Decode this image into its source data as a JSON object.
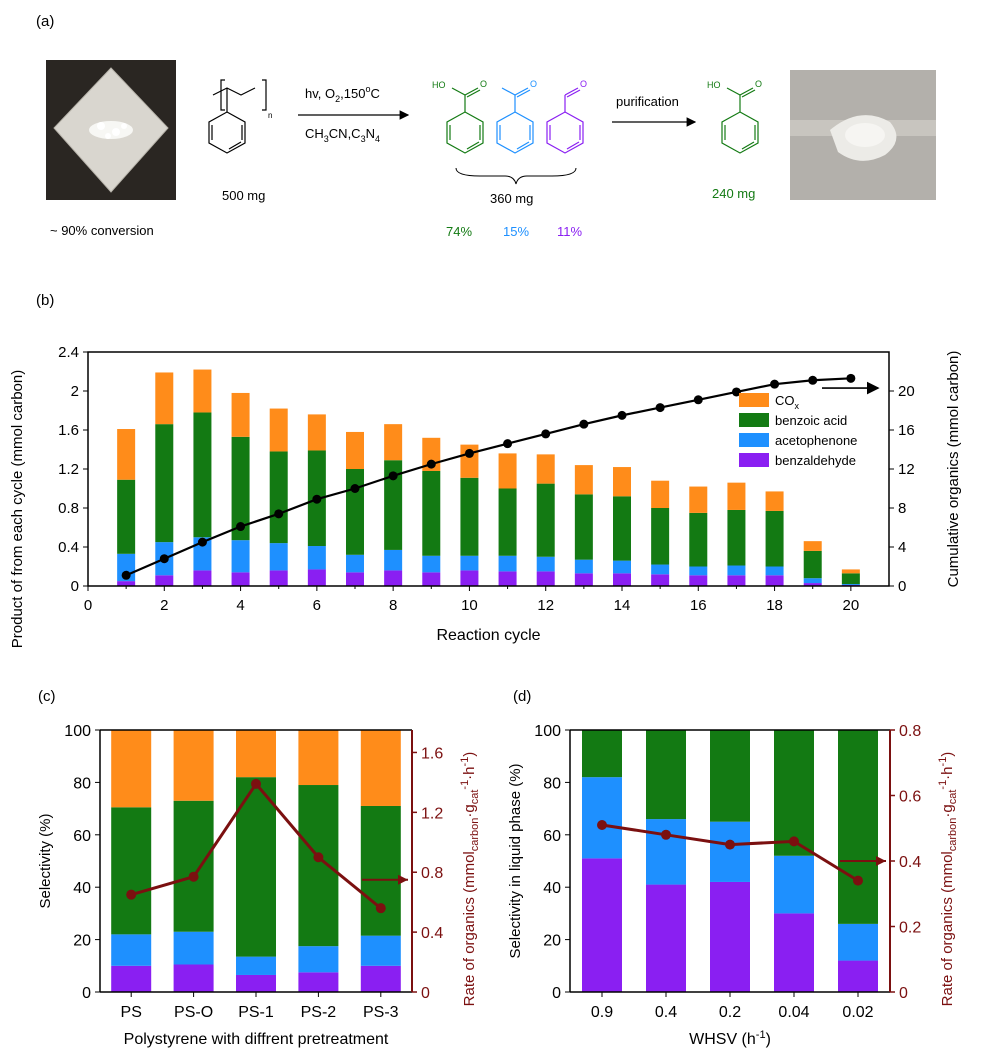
{
  "colors": {
    "cox": "#FF8C1A",
    "benzoic": "#137A13",
    "acetophenone": "#1E90FF",
    "benzaldehyde": "#8A1FF2",
    "rate": "#7B1010",
    "cumulative": "#000000"
  },
  "panel_a": {
    "label": "(a)",
    "conversion": "~ 90% conversion",
    "ps_mass": "500 mg",
    "sub_n": "n",
    "cond_top": "hv, O",
    "cond_top_sub": "2",
    "cond_top_rest": ",150",
    "cond_top_sup": "o",
    "cond_top_unit": "C",
    "cond_bot_1": "CH",
    "cond_bot_sub1": "3",
    "cond_bot_2": "CN,C",
    "cond_bot_sub2": "3",
    "cond_bot_3": "N",
    "cond_bot_sub3": "4",
    "mix_mass": "360 mg",
    "pct_benzoic": "74%",
    "pct_aceto": "15%",
    "pct_benzald": "11%",
    "purification": "purification",
    "final_mass": "240 mg",
    "ho_label": "HO",
    "o_label": "O"
  },
  "chart_data": [
    {
      "panel": "(b)",
      "type": "bar",
      "stacked": true,
      "x": [
        1,
        2,
        3,
        4,
        5,
        6,
        7,
        8,
        9,
        10,
        11,
        12,
        13,
        14,
        15,
        16,
        17,
        18,
        19,
        20
      ],
      "series": [
        {
          "name": "benzaldehyde",
          "values": [
            0.05,
            0.11,
            0.16,
            0.14,
            0.16,
            0.17,
            0.14,
            0.16,
            0.14,
            0.16,
            0.15,
            0.15,
            0.13,
            0.13,
            0.12,
            0.11,
            0.11,
            0.11,
            0.03,
            0.01
          ]
        },
        {
          "name": "acetophenone",
          "values": [
            0.28,
            0.34,
            0.34,
            0.33,
            0.28,
            0.24,
            0.18,
            0.21,
            0.17,
            0.15,
            0.16,
            0.15,
            0.14,
            0.13,
            0.1,
            0.09,
            0.1,
            0.09,
            0.05,
            0.01
          ]
        },
        {
          "name": "benzoic acid",
          "values": [
            0.76,
            1.21,
            1.28,
            1.06,
            0.94,
            0.98,
            0.88,
            0.92,
            0.87,
            0.8,
            0.69,
            0.75,
            0.67,
            0.66,
            0.58,
            0.55,
            0.57,
            0.57,
            0.28,
            0.11
          ]
        },
        {
          "name": "CO",
          "values": [
            0.52,
            0.53,
            0.44,
            0.45,
            0.44,
            0.37,
            0.38,
            0.37,
            0.34,
            0.34,
            0.36,
            0.3,
            0.3,
            0.3,
            0.28,
            0.27,
            0.28,
            0.2,
            0.1,
            0.04
          ]
        }
      ],
      "cumulative": [
        1.1,
        2.8,
        4.5,
        6.1,
        7.4,
        8.9,
        10.0,
        11.3,
        12.5,
        13.6,
        14.6,
        15.6,
        16.6,
        17.5,
        18.3,
        19.1,
        19.9,
        20.7,
        21.1,
        21.3
      ],
      "xlabel": "Reaction cycle",
      "ylabel": "Product of from each cycle (mmol carbon)",
      "y2label": "Cumulative organics (mmol carbon)",
      "xlim": [
        0,
        21
      ],
      "ylim": [
        0,
        2.4
      ],
      "y2lim": [
        0,
        24
      ],
      "xticks": [
        0,
        2,
        4,
        6,
        8,
        10,
        12,
        14,
        16,
        18,
        20
      ],
      "yticks": [
        "0",
        "0.4",
        "0.8",
        "1.2",
        "1.6",
        "2",
        "2.4"
      ],
      "y2ticks": [
        0,
        4,
        8,
        12,
        16,
        20
      ],
      "legend_position": "top-right",
      "legend": [
        "CO",
        "benzoic acid",
        "acetophenone",
        "benzaldehyde"
      ],
      "legend_sub": "x"
    },
    {
      "panel": "(c)",
      "type": "bar",
      "stacked": true,
      "categories": [
        "PS",
        "PS-O",
        "PS-1",
        "PS-2",
        "PS-3"
      ],
      "series": [
        {
          "name": "benzaldehyde",
          "values": [
            10,
            10.5,
            6.5,
            7.5,
            10
          ]
        },
        {
          "name": "acetophenone",
          "values": [
            12,
            12.5,
            7,
            10,
            11.5
          ]
        },
        {
          "name": "benzoic acid",
          "values": [
            48.5,
            50,
            68.5,
            61.5,
            49.5
          ]
        },
        {
          "name": "CO",
          "values": [
            29.5,
            27,
            18,
            21,
            29
          ]
        }
      ],
      "rate": [
        0.65,
        0.77,
        1.39,
        0.9,
        0.56
      ],
      "xlabel": "Polystyrene with diffrent pretreatment",
      "ylabel": "Selectivity (%)",
      "y2label_main": "Rate of organics (mmol",
      "y2label_sub1": "carbon",
      "y2label_mid": "·g",
      "y2label_sub2": "cat",
      "y2label_sup1": "-1",
      "y2label_mid2": "·h",
      "y2label_sup2": "-1",
      "y2label_end": ")",
      "ylim": [
        0,
        100
      ],
      "y2lim": [
        0,
        1.75
      ],
      "yticks": [
        0,
        20,
        40,
        60,
        80,
        100
      ],
      "y2ticks": [
        "0",
        "0.4",
        "0.8",
        "1.2",
        "1.6"
      ]
    },
    {
      "panel": "(d)",
      "type": "bar",
      "stacked": true,
      "categories": [
        "0.9",
        "0.4",
        "0.2",
        "0.04",
        "0.02"
      ],
      "series": [
        {
          "name": "benzaldehyde",
          "values": [
            51,
            41,
            42,
            30,
            12
          ]
        },
        {
          "name": "acetophenone",
          "values": [
            31,
            25,
            23,
            22,
            14
          ]
        },
        {
          "name": "benzoic acid",
          "values": [
            18,
            34,
            35,
            48,
            74
          ]
        }
      ],
      "rate": [
        0.51,
        0.48,
        0.45,
        0.46,
        0.34
      ],
      "xlabel_main": "WHSV (h",
      "xlabel_sup": "-1",
      "xlabel_end": ")",
      "ylabel": "Selectivity in liquid phase (%)",
      "y2label_main": "Rate of organics (mmol",
      "y2label_sub1": "carbon",
      "y2label_mid": "·g",
      "y2label_sub2": "cat",
      "y2label_sup1": "-1",
      "y2label_mid2": "·h",
      "y2label_sup2": "-1",
      "y2label_end": ")",
      "ylim": [
        0,
        100
      ],
      "y2lim": [
        0,
        0.8
      ],
      "yticks": [
        0,
        20,
        40,
        60,
        80,
        100
      ],
      "y2ticks": [
        "0",
        "0.2",
        "0.4",
        "0.6",
        "0.8"
      ]
    }
  ]
}
